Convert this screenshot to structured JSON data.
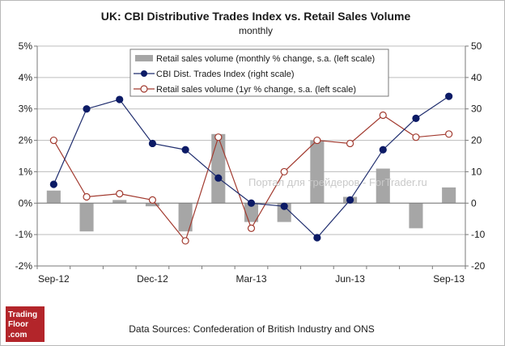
{
  "chart_data": {
    "type": "bar+line",
    "title": "UK: CBI Distributive Trades Index vs. Retail Sales Volume",
    "subtitle": "monthly",
    "categories": [
      "Sep-12",
      "Oct-12",
      "Nov-12",
      "Dec-12",
      "Jan-13",
      "Feb-13",
      "Mar-13",
      "Apr-13",
      "May-13",
      "Jun-13",
      "Jul-13",
      "Aug-13",
      "Sep-13"
    ],
    "x_tick_labels": [
      "Sep-12",
      "Dec-12",
      "Mar-13",
      "Jun-13",
      "Sep-13"
    ],
    "left_axis": {
      "ylim": [
        -2,
        5
      ],
      "ticks": [
        "-2%",
        "-1%",
        "0%",
        "1%",
        "2%",
        "3%",
        "4%",
        "5%"
      ]
    },
    "right_axis": {
      "ylim": [
        -20,
        50
      ],
      "ticks": [
        "-20",
        "-10",
        "0",
        "10",
        "20",
        "30",
        "40",
        "50"
      ]
    },
    "grid": true,
    "legend_position": "top-center",
    "series": [
      {
        "name": "Retail sales volume (monthly % change, s.a. (left scale)",
        "type": "bar",
        "axis": "left",
        "color": "#a6a6a6",
        "values": [
          0.4,
          -0.9,
          0.1,
          -0.1,
          -0.9,
          2.2,
          -0.6,
          -0.6,
          2.0,
          0.2,
          1.1,
          -0.8,
          0.5
        ]
      },
      {
        "name": "CBI Dist. Trades Index (right scale)",
        "type": "line",
        "axis": "right",
        "color": "#1f2d6e",
        "values": [
          6,
          30,
          33,
          19,
          17,
          8,
          0,
          -1,
          -11,
          1,
          17,
          27,
          34
        ]
      },
      {
        "name": "Retail sales volume (1yr % change, s.a. (left scale)",
        "type": "line",
        "axis": "left",
        "color": "#a23a2f",
        "values": [
          2.0,
          0.2,
          0.3,
          0.1,
          -1.2,
          2.1,
          -0.8,
          1.0,
          2.0,
          1.9,
          2.8,
          2.1,
          2.2
        ]
      }
    ],
    "watermark": "Портал для трейдеров - ForTrader.ru",
    "source": "Data Sources: Confederation of British Industry and ONS"
  },
  "logo": {
    "lines": [
      "Trading",
      "Floor",
      ".com"
    ]
  }
}
